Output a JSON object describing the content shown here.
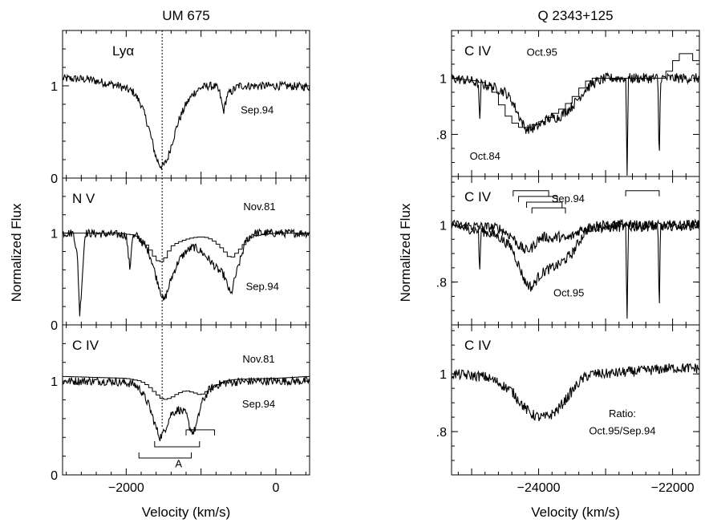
{
  "chart_data": [
    {
      "type": "line",
      "title": "UM 675",
      "xlabel": "Velocity (km/s)",
      "ylabel": "Normalized Flux",
      "xlim": [
        -2850,
        450
      ],
      "x_ticks": [
        -2000,
        0
      ],
      "x_tick_labels": [
        "−2000",
        "0"
      ],
      "reference_velocity": -1520,
      "panels": [
        {
          "ion": "Lyα",
          "ylim": [
            0,
            1.6
          ],
          "y_ticks": [
            {
              "v": 0,
              "label": "0"
            },
            {
              "v": 1,
              "label": "1"
            }
          ],
          "series": [
            {
              "name": "Sep.94",
              "style": "noisy",
              "x": [
                -2850,
                -2500,
                -2100,
                -1900,
                -1800,
                -1700,
                -1600,
                -1550,
                -1500,
                -1450,
                -1400,
                -1300,
                -1200,
                -1100,
                -1000,
                -900,
                -800,
                -750,
                -700,
                -650,
                -500,
                -300,
                0,
                450
              ],
              "y": [
                1.08,
                1.07,
                1.0,
                0.93,
                0.8,
                0.55,
                0.22,
                0.14,
                0.13,
                0.2,
                0.35,
                0.62,
                0.8,
                0.92,
                0.98,
                1.0,
                0.99,
                0.92,
                0.72,
                0.9,
                1.0,
                1.0,
                1.0,
                0.99
              ]
            }
          ],
          "annotations": [
            {
              "text": "Sep.94",
              "x": -250,
              "y": 0.7
            }
          ]
        },
        {
          "ion": "N V",
          "ylim": [
            0,
            1.6
          ],
          "y_ticks": [
            {
              "v": 0,
              "label": "0"
            },
            {
              "v": 1,
              "label": "1"
            }
          ],
          "series": [
            {
              "name": "Sep.94",
              "style": "noisy",
              "x": [
                -2850,
                -2700,
                -2650,
                -2620,
                -2550,
                -2000,
                -1950,
                -1920,
                -1850,
                -1700,
                -1650,
                -1600,
                -1550,
                -1500,
                -1450,
                -1400,
                -1300,
                -1200,
                -1100,
                -1000,
                -900,
                -800,
                -700,
                -600,
                -550,
                -400,
                -300,
                0,
                450
              ],
              "y": [
                1.0,
                1.0,
                0.72,
                0.1,
                1.0,
                0.98,
                0.6,
                0.95,
                0.97,
                0.8,
                0.68,
                0.52,
                0.4,
                0.25,
                0.36,
                0.5,
                0.7,
                0.8,
                0.85,
                0.8,
                0.72,
                0.62,
                0.55,
                0.32,
                0.5,
                0.92,
                1.0,
                1.0,
                1.0
              ]
            },
            {
              "name": "Nov.81",
              "style": "step",
              "x": [
                -2850,
                -2100,
                -1900,
                -1800,
                -1700,
                -1650,
                -1600,
                -1550,
                -1500,
                -1450,
                -1400,
                -1300,
                -1200,
                -1100,
                -1000,
                -900,
                -800,
                -700,
                -600,
                -500,
                -400,
                -300,
                0,
                450
              ],
              "y": [
                1.0,
                1.0,
                0.98,
                0.93,
                0.85,
                0.78,
                0.72,
                0.68,
                0.7,
                0.76,
                0.85,
                0.9,
                0.93,
                0.95,
                0.96,
                0.95,
                0.9,
                0.82,
                0.72,
                0.8,
                0.9,
                0.97,
                1.0,
                1.0
              ]
            }
          ],
          "annotations": [
            {
              "text": "Nov.81",
              "x": -220,
              "y": 1.25
            },
            {
              "text": "Sep.94",
              "x": -180,
              "y": 0.38
            }
          ]
        },
        {
          "ion": "C IV",
          "ylim": [
            0,
            1.6
          ],
          "y_ticks": [
            {
              "v": 0,
              "label": "0"
            },
            {
              "v": 1,
              "label": "1"
            }
          ],
          "series": [
            {
              "name": "Sep.94",
              "style": "noisy",
              "x": [
                -2850,
                -2200,
                -1900,
                -1800,
                -1700,
                -1600,
                -1550,
                -1500,
                -1400,
                -1300,
                -1200,
                -1150,
                -1100,
                -1050,
                -1000,
                -900,
                -800,
                -600,
                -300,
                0,
                450
              ],
              "y": [
                1.0,
                1.0,
                0.97,
                0.9,
                0.75,
                0.5,
                0.4,
                0.45,
                0.65,
                0.7,
                0.65,
                0.5,
                0.45,
                0.56,
                0.75,
                0.9,
                0.96,
                0.99,
                1.0,
                1.0,
                1.0
              ]
            },
            {
              "name": "Nov.81",
              "style": "step",
              "x": [
                -2850,
                -2000,
                -1800,
                -1700,
                -1600,
                -1500,
                -1400,
                -1300,
                -1200,
                -1100,
                -1000,
                -900,
                -800,
                -700,
                -500,
                0,
                450
              ],
              "y": [
                1.05,
                1.03,
                1.0,
                0.95,
                0.87,
                0.8,
                0.82,
                0.87,
                0.9,
                0.88,
                0.85,
                0.9,
                0.95,
                1.0,
                1.02,
                1.03,
                1.05
              ]
            }
          ],
          "annotations": [
            {
              "text": "Nov.81",
              "x": -230,
              "y": 1.2
            },
            {
              "text": "Sep.94",
              "x": -230,
              "y": 0.72
            },
            {
              "text": "A",
              "x": -1300,
              "y": 0.08
            }
          ],
          "brackets": [
            {
              "x1": -1830,
              "x2": -1130,
              "y": 0.18,
              "ticks_up": true
            },
            {
              "x1": -1620,
              "x2": -1020,
              "y": 0.3,
              "ticks_up": true
            },
            {
              "x1": -1200,
              "x2": -820,
              "y": 0.48,
              "ticks_up": false
            }
          ]
        }
      ]
    },
    {
      "type": "line",
      "title": "Q 2343+125",
      "xlabel": "Velocity (km/s)",
      "ylabel": "Normalized Flux",
      "xlim": [
        -25300,
        -21600
      ],
      "x_ticks": [
        -24000,
        -22000
      ],
      "x_tick_labels": [
        "−24000",
        "−22000"
      ],
      "panels": [
        {
          "ion": "C IV",
          "ylim": [
            0.65,
            1.17
          ],
          "y_ticks": [
            {
              "v": 0.8,
              "label": ".8"
            },
            {
              "v": 1,
              "label": "1"
            }
          ],
          "series": [
            {
              "name": "Oct.95",
              "style": "noisy",
              "x": [
                -25300,
                -25000,
                -24900,
                -24880,
                -24860,
                -24700,
                -24500,
                -24400,
                -24300,
                -24200,
                -24100,
                -24000,
                -23900,
                -23800,
                -23700,
                -23600,
                -23500,
                -23400,
                -23300,
                -23200,
                -23000,
                -22700,
                -22680,
                -22660,
                -22500,
                -22220,
                -22200,
                -22180,
                -22000,
                -21600
              ],
              "y": [
                1.0,
                0.99,
                0.98,
                0.83,
                0.98,
                0.97,
                0.95,
                0.92,
                0.87,
                0.82,
                0.82,
                0.83,
                0.85,
                0.86,
                0.86,
                0.88,
                0.9,
                0.93,
                0.96,
                0.98,
                1.0,
                1.0,
                0.65,
                1.0,
                1.0,
                1.0,
                0.68,
                1.0,
                1.0,
                1.0
              ]
            },
            {
              "name": "Oct.84",
              "style": "step",
              "x": [
                -25300,
                -24900,
                -24700,
                -24600,
                -24500,
                -24400,
                -24300,
                -24200,
                -24100,
                -24000,
                -23900,
                -23800,
                -23700,
                -23600,
                -23500,
                -23400,
                -23300,
                -23200,
                -22900,
                -22500,
                -22100,
                -22000,
                -21800,
                -21600
              ],
              "y": [
                1.0,
                0.99,
                0.97,
                0.93,
                0.88,
                0.85,
                0.83,
                0.82,
                0.83,
                0.84,
                0.85,
                0.87,
                0.88,
                0.9,
                0.92,
                0.95,
                0.98,
                1.0,
                1.0,
                1.0,
                1.0,
                1.05,
                1.1,
                1.05
              ]
            }
          ],
          "annotations": [
            {
              "text": "Oct.95",
              "x": -23950,
              "y": 1.08
            },
            {
              "text": "Oct.84",
              "x": -24800,
              "y": 0.71
            }
          ]
        },
        {
          "ion": "C IV",
          "ylim": [
            0.65,
            1.17
          ],
          "y_ticks": [
            {
              "v": 0.8,
              "label": ".8"
            },
            {
              "v": 1,
              "label": "1"
            }
          ],
          "series": [
            {
              "name": "Oct.95",
              "style": "noisy",
              "x": [
                -25300,
                -24900,
                -24880,
                -24860,
                -24600,
                -24400,
                -24300,
                -24200,
                -24100,
                -24000,
                -23900,
                -23800,
                -23700,
                -23600,
                -23500,
                -23400,
                -23300,
                -23100,
                -22700,
                -22680,
                -22660,
                -22220,
                -22200,
                -22180,
                -21600
              ],
              "y": [
                1.0,
                0.98,
                0.83,
                0.98,
                0.96,
                0.92,
                0.86,
                0.8,
                0.78,
                0.82,
                0.84,
                0.85,
                0.86,
                0.88,
                0.9,
                0.94,
                0.98,
                1.0,
                1.0,
                0.65,
                1.0,
                1.0,
                0.68,
                1.0,
                1.0
              ]
            },
            {
              "name": "Sep.94",
              "style": "noisy",
              "x": [
                -25300,
                -24600,
                -24400,
                -24300,
                -24200,
                -24100,
                -24000,
                -23900,
                -23800,
                -23700,
                -23600,
                -23500,
                -23400,
                -23300,
                -21600
              ],
              "y": [
                1.0,
                0.99,
                0.96,
                0.93,
                0.91,
                0.92,
                0.95,
                0.96,
                0.95,
                0.96,
                0.95,
                0.96,
                0.98,
                0.99,
                1.0
              ]
            }
          ],
          "annotations": [
            {
              "text": "Sep.94",
              "x": -23560,
              "y": 1.08
            },
            {
              "text": "Oct.95",
              "x": -23550,
              "y": 0.75
            }
          ],
          "brackets": [
            {
              "x1": -24380,
              "x2": -23850,
              "y": 1.12,
              "ticks_up": false
            },
            {
              "x1": -24300,
              "x2": -23720,
              "y": 1.1,
              "ticks_up": false
            },
            {
              "x1": -24180,
              "x2": -23650,
              "y": 1.08,
              "ticks_up": false
            },
            {
              "x1": -24100,
              "x2": -23600,
              "y": 1.06,
              "ticks_up": false
            },
            {
              "x1": -22700,
              "x2": -22200,
              "y": 1.12,
              "ticks_up": false
            }
          ]
        },
        {
          "ion": "C IV",
          "ylim": [
            0.65,
            1.17
          ],
          "y_ticks": [
            {
              "v": 0.8,
              "label": ".8"
            },
            {
              "v": 1,
              "label": "1"
            }
          ],
          "series": [
            {
              "name": "Ratio",
              "style": "noisy",
              "x": [
                -25300,
                -24800,
                -24600,
                -24400,
                -24300,
                -24200,
                -24100,
                -24000,
                -23900,
                -23800,
                -23700,
                -23600,
                -23500,
                -23400,
                -23300,
                -23200,
                -23000,
                -22500,
                -22000,
                -21600
              ],
              "y": [
                1.0,
                0.99,
                0.97,
                0.94,
                0.91,
                0.88,
                0.86,
                0.85,
                0.85,
                0.86,
                0.88,
                0.91,
                0.94,
                0.97,
                0.99,
                1.0,
                1.0,
                1.01,
                1.02,
                1.02
              ]
            }
          ],
          "annotations": [
            {
              "text": "Ratio:",
              "x": -22750,
              "y": 0.85
            },
            {
              "text": "Oct.95/Sep.94",
              "x": -22750,
              "y": 0.79
            }
          ]
        }
      ]
    }
  ]
}
